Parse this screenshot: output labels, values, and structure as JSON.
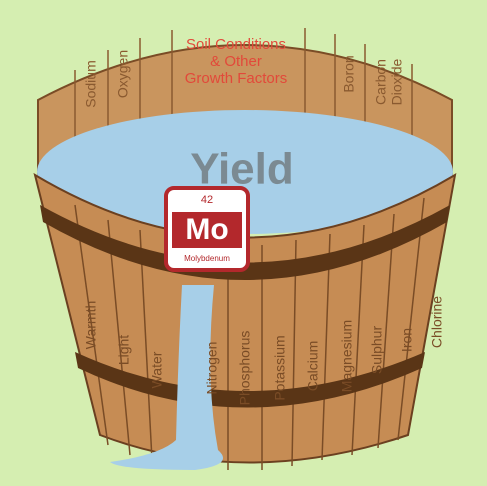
{
  "title": {
    "lines": [
      "Soil Conditions",
      "& Other",
      "Growth Factors"
    ]
  },
  "yield": "Yield",
  "element": {
    "number": 42,
    "symbol": "Mo",
    "name": "Molybdenum"
  },
  "back_staves": [
    [
      "Sodium"
    ],
    [
      "Oxygen"
    ],
    [
      "Boron"
    ],
    [
      "Carbon",
      "Dioxide"
    ]
  ],
  "front_staves": [
    "Warmth",
    "Light",
    "Water",
    "Nitrogen",
    "Phosphorus",
    "Potassium",
    "Calcium",
    "Magnesium",
    "Sulphur",
    "Iron",
    "Chlorine"
  ]
}
